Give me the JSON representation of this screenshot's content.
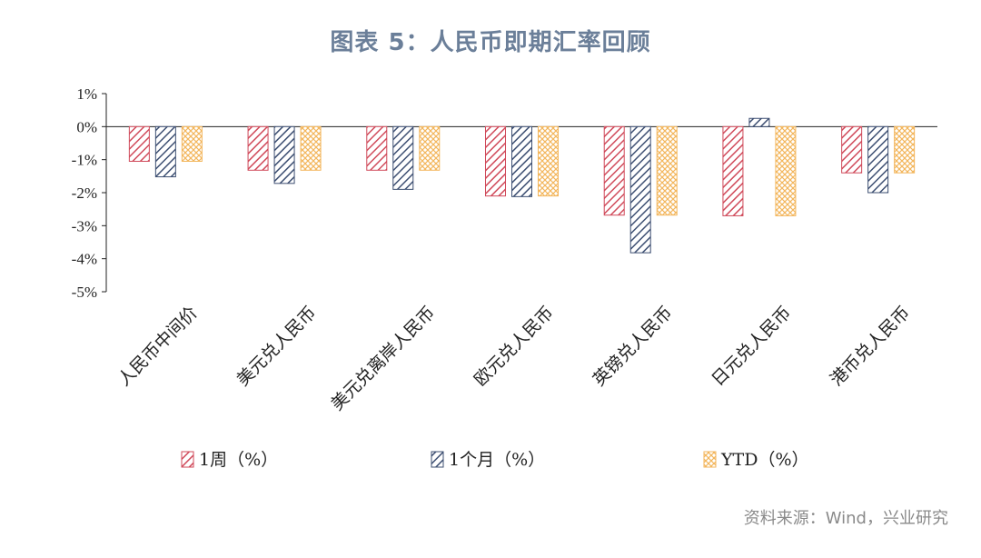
{
  "title": "图表 5：人民币即期汇率回顾",
  "source": "资料来源：Wind，兴业研究",
  "chart_data": {
    "type": "bar",
    "title": "图表 5：人民币即期汇率回顾",
    "categories": [
      "人民币中间价",
      "美元兑人民币",
      "美元兑离岸人民币",
      "欧元兑人民币",
      "英镑兑人民币",
      "日元兑人民币",
      "港币兑人民币"
    ],
    "series": [
      {
        "name": "1周（%）",
        "values": [
          -1.05,
          -1.32,
          -1.32,
          -2.1,
          -2.68,
          -2.7,
          -1.4
        ],
        "color": "#d04a5a",
        "pattern": "diag"
      },
      {
        "name": "1个月（%）",
        "values": [
          -1.52,
          -1.72,
          -1.9,
          -2.12,
          -3.82,
          0.25,
          -2.0
        ],
        "color": "#3d4f72",
        "pattern": "diag"
      },
      {
        "name": "YTD（%）",
        "values": [
          -1.05,
          -1.32,
          -1.32,
          -2.1,
          -2.68,
          -2.7,
          -1.4
        ],
        "color": "#f3b65c",
        "pattern": "cross"
      }
    ],
    "y_ticks": [
      "1%",
      "0%",
      "-1%",
      "-2%",
      "-3%",
      "-4%",
      "-5%"
    ],
    "ylim": [
      -5,
      1
    ],
    "legend_position": "bottom"
  }
}
